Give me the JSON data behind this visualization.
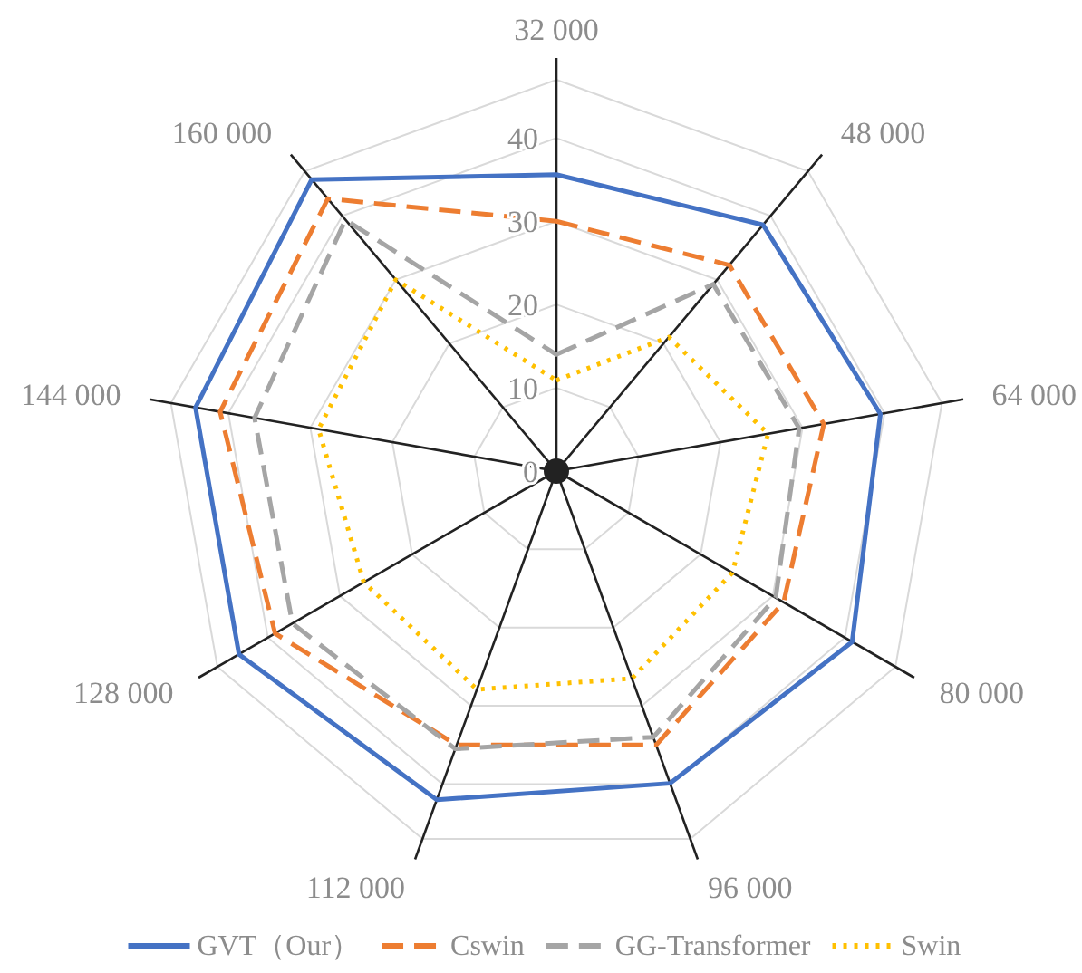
{
  "chart_data": {
    "type": "radar",
    "categories": [
      "32 000",
      "48 000",
      "64 000",
      "80 000",
      "96 000",
      "112 000",
      "128 000",
      "144 000",
      "160 000"
    ],
    "ylim": [
      0,
      47
    ],
    "yticks": [
      0,
      10,
      20,
      30,
      40
    ],
    "grid": true,
    "legend": "bottom",
    "series": [
      {
        "name": "GVT（Our）",
        "color": "#4472c4",
        "line_style": "solid",
        "values": [
          35.6,
          38.6,
          39.5,
          41,
          39.9,
          42,
          44,
          44,
          45.7
        ]
      },
      {
        "name": "Cswin",
        "color": "#ed7d31",
        "line_style": "dashed",
        "values": [
          30,
          32.3,
          32.6,
          31.5,
          35,
          35,
          39,
          41,
          42.7
        ]
      },
      {
        "name": "GG-Transformer",
        "color": "#a5a5a5",
        "line_style": "dashed",
        "values": [
          14,
          29.3,
          29.6,
          30.4,
          34,
          35.5,
          36.6,
          36.8,
          39.4
        ]
      },
      {
        "name": "Swin",
        "color": "#ffc000",
        "line_style": "dotted",
        "values": [
          10.9,
          21,
          25.8,
          24.4,
          26.5,
          27.9,
          26.7,
          29,
          30
        ]
      }
    ]
  }
}
